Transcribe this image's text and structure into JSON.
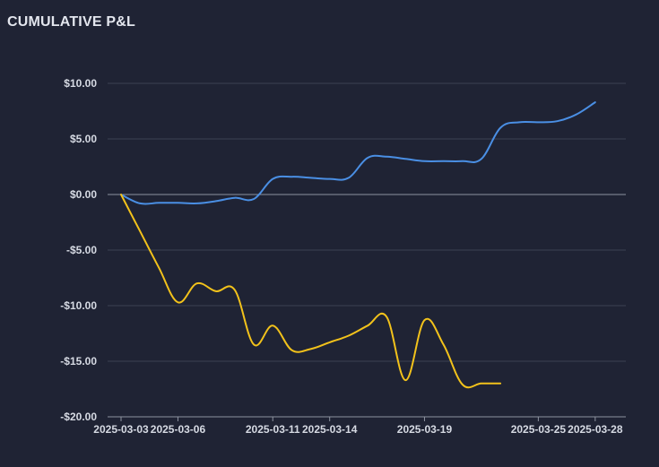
{
  "panel": {
    "title": "CUMULATIVE P&L"
  },
  "colors": {
    "background": "#1f2334",
    "grid": "#3b4152",
    "zero_line": "#8e93a0",
    "axis": "#8e93a0",
    "series_blue": "#4a8fe4",
    "series_yellow": "#f2c21b"
  },
  "chart_data": {
    "type": "line",
    "title": "CUMULATIVE P&L",
    "xlabel": "",
    "ylabel": "",
    "ylim": [
      -20,
      10
    ],
    "xlim": [
      "2025-03-03",
      "2025-03-29"
    ],
    "grid": true,
    "legend": "none",
    "y_ticks": [
      {
        "value": 10,
        "label": "$10.00"
      },
      {
        "value": 5,
        "label": "$5.00"
      },
      {
        "value": 0,
        "label": "$0.00"
      },
      {
        "value": -5,
        "label": "-$5.00"
      },
      {
        "value": -10,
        "label": "-$10.00"
      },
      {
        "value": -15,
        "label": "-$15.00"
      },
      {
        "value": -20,
        "label": "-$20.00"
      }
    ],
    "x_ticks": [
      "2025-03-03",
      "2025-03-06",
      "2025-03-11",
      "2025-03-14",
      "2025-03-19",
      "2025-03-25",
      "2025-03-28"
    ],
    "series": [
      {
        "color": "#4a8fe4",
        "points": [
          [
            "2025-03-03",
            0
          ],
          [
            "2025-03-04",
            -0.8
          ],
          [
            "2025-03-05",
            -0.75
          ],
          [
            "2025-03-06",
            -0.75
          ],
          [
            "2025-03-07",
            -0.8
          ],
          [
            "2025-03-08",
            -0.6
          ],
          [
            "2025-03-09",
            -0.3
          ],
          [
            "2025-03-10",
            -0.4
          ],
          [
            "2025-03-11",
            1.4
          ],
          [
            "2025-03-12",
            1.6
          ],
          [
            "2025-03-13",
            1.5
          ],
          [
            "2025-03-14",
            1.4
          ],
          [
            "2025-03-15",
            1.5
          ],
          [
            "2025-03-16",
            3.3
          ],
          [
            "2025-03-17",
            3.4
          ],
          [
            "2025-03-18",
            3.2
          ],
          [
            "2025-03-19",
            3.0
          ],
          [
            "2025-03-20",
            3.0
          ],
          [
            "2025-03-21",
            3.0
          ],
          [
            "2025-03-22",
            3.2
          ],
          [
            "2025-03-23",
            6.0
          ],
          [
            "2025-03-24",
            6.5
          ],
          [
            "2025-03-25",
            6.5
          ],
          [
            "2025-03-26",
            6.6
          ],
          [
            "2025-03-27",
            7.2
          ],
          [
            "2025-03-28",
            8.3
          ]
        ]
      },
      {
        "color": "#f2c21b",
        "points": [
          [
            "2025-03-03",
            0
          ],
          [
            "2025-03-04",
            -3.3
          ],
          [
            "2025-03-05",
            -6.6
          ],
          [
            "2025-03-06",
            -9.7
          ],
          [
            "2025-03-07",
            -8.0
          ],
          [
            "2025-03-08",
            -8.7
          ],
          [
            "2025-03-09",
            -8.6
          ],
          [
            "2025-03-10",
            -13.5
          ],
          [
            "2025-03-11",
            -11.8
          ],
          [
            "2025-03-12",
            -14.0
          ],
          [
            "2025-03-13",
            -13.9
          ],
          [
            "2025-03-14",
            -13.3
          ],
          [
            "2025-03-15",
            -12.7
          ],
          [
            "2025-03-16",
            -11.8
          ],
          [
            "2025-03-17",
            -11.0
          ],
          [
            "2025-03-18",
            -16.7
          ],
          [
            "2025-03-19",
            -11.3
          ],
          [
            "2025-03-20",
            -13.5
          ],
          [
            "2025-03-21",
            -17.1
          ],
          [
            "2025-03-22",
            -17.0
          ],
          [
            "2025-03-23",
            -17.0
          ]
        ]
      }
    ]
  }
}
